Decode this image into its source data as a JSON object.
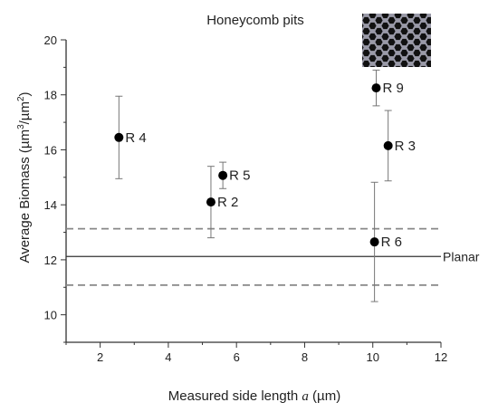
{
  "chart_data": {
    "type": "scatter",
    "title": "Honeycomb pits",
    "xlabel_prefix": "Measured side length ",
    "xlabel_var": "a",
    "xlabel_suffix": " (µm)",
    "ylabel_main": "Average Biomass (µm",
    "ylabel_sup1": "3",
    "ylabel_mid": "/µm",
    "ylabel_sup2": "2",
    "ylabel_end": ")",
    "xlim": [
      1,
      12
    ],
    "ylim": [
      9,
      20
    ],
    "x_ticks": [
      2,
      4,
      6,
      8,
      10,
      12
    ],
    "y_ticks": [
      10,
      12,
      14,
      16,
      18,
      20
    ],
    "points": [
      {
        "label": "R 4",
        "x": 2.55,
        "y": 16.45,
        "err": 1.5
      },
      {
        "label": "R 2",
        "x": 5.25,
        "y": 14.1,
        "err": 1.3
      },
      {
        "label": "R 5",
        "x": 5.6,
        "y": 15.07,
        "err": 0.48
      },
      {
        "label": "R 9",
        "x": 10.1,
        "y": 18.25,
        "err": 0.65
      },
      {
        "label": "R 3",
        "x": 10.45,
        "y": 16.15,
        "err": 1.28
      },
      {
        "label": "R 6",
        "x": 10.05,
        "y": 12.65,
        "err": 2.17
      }
    ],
    "reference": {
      "label": "Planar",
      "y": 12.12,
      "upper": 13.13,
      "lower": 11.08
    },
    "grid": false,
    "inset_image": "honeycomb pattern"
  }
}
